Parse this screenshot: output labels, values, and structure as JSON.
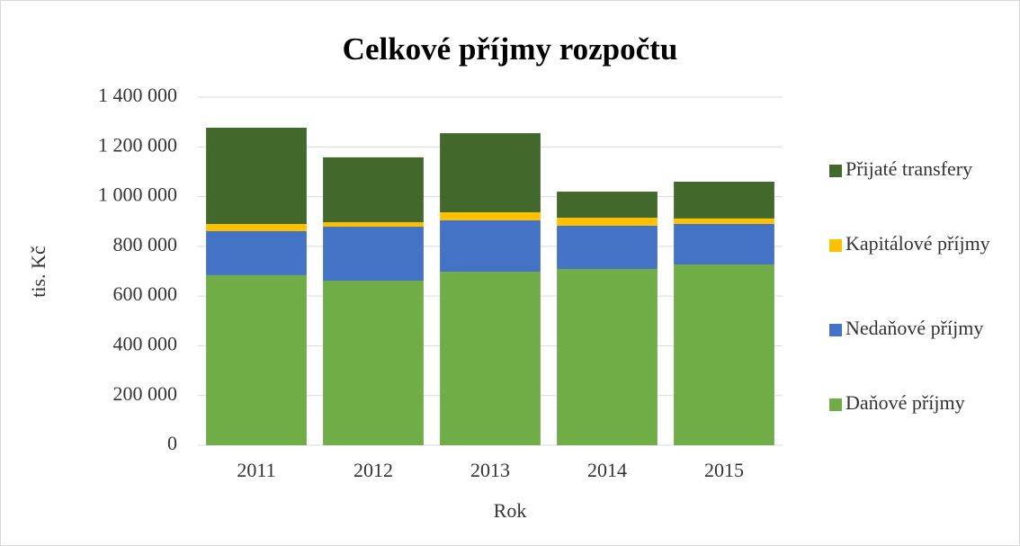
{
  "chart_data": {
    "type": "stacked_bar",
    "title": "Celkové příjmy rozpočtu",
    "x_label": "Rok",
    "y_label": "tis. Kč",
    "categories": [
      "2011",
      "2012",
      "2013",
      "2014",
      "2015"
    ],
    "series": [
      {
        "name": "Daňové příjmy",
        "color": "#70ad47",
        "values": [
          684000,
          662000,
          698000,
          709000,
          727000
        ]
      },
      {
        "name": "Nedaňové příjmy",
        "color": "#4472c4",
        "values": [
          177000,
          217000,
          207000,
          174000,
          163000
        ]
      },
      {
        "name": "Kapitálové příjmy",
        "color": "#ffc000",
        "values": [
          29000,
          18000,
          32000,
          32000,
          22000
        ]
      },
      {
        "name": "Přijaté transfery",
        "color": "#43682b",
        "values": [
          387000,
          261000,
          318000,
          105000,
          148000
        ]
      }
    ],
    "ylim": [
      0,
      1400000
    ],
    "yticks": [
      0,
      {
        "value": 200000,
        "label": "200 000"
      },
      {
        "value": 400000,
        "label": "400 000"
      },
      {
        "value": 600000,
        "label": "600 000"
      },
      {
        "value": 800000,
        "label": "800 000"
      },
      {
        "value": 1000000,
        "label": "1 000 000"
      },
      {
        "value": 1200000,
        "label": "1 200 000"
      },
      {
        "value": 1400000,
        "label": "1 400 000"
      }
    ],
    "grid": true,
    "legend": "right"
  }
}
